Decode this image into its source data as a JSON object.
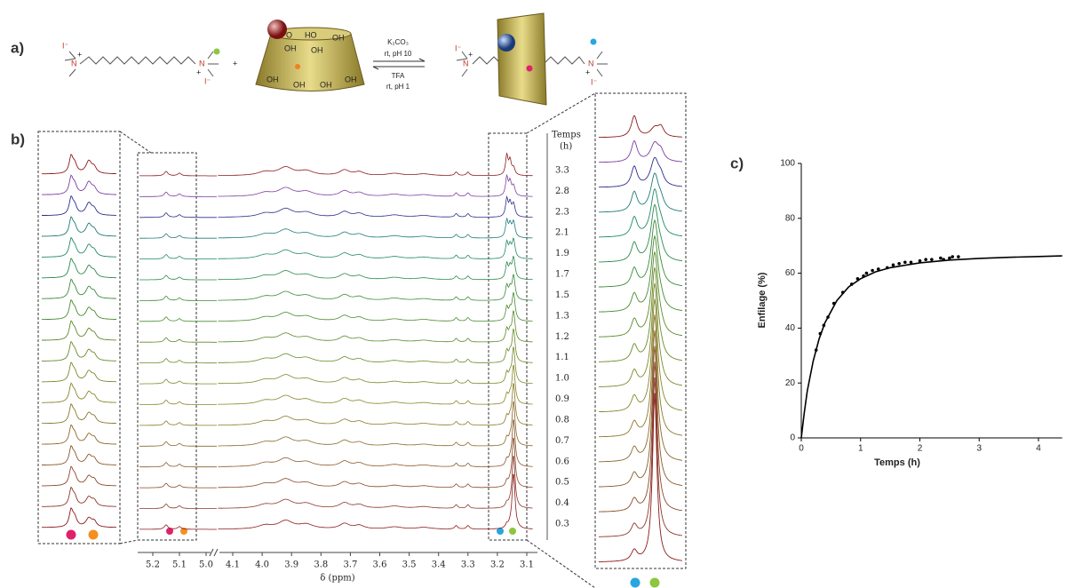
{
  "figure": {
    "panel_labels": [
      "a)",
      "b)",
      "c)"
    ],
    "reaction": {
      "atom_labels": [
        "I⁻",
        "N",
        "+",
        "N",
        "+",
        "I⁻",
        "+",
        "O",
        "HO",
        "OH",
        "OH",
        "OH",
        "OH",
        "OH",
        "OH",
        "OH",
        "I⁻",
        "N",
        "+",
        "N",
        "+",
        "I⁻"
      ],
      "conditions": [
        "K₂CO₃",
        "rt, pH 10",
        "TFA",
        "rt, pH 1"
      ]
    },
    "spectra": {
      "time_title": "Temps",
      "time_unit": "(h)",
      "times": [
        3.3,
        2.8,
        2.3,
        2.1,
        1.9,
        1.7,
        1.5,
        1.3,
        1.2,
        1.1,
        {
          "value": 1,
          "label": "1.0"
        },
        0.9,
        0.8,
        0.7,
        0.6,
        0.5,
        0.4,
        0.3
      ],
      "colors": [
        "#8b1a1a",
        "#7b3fa0",
        "#2c2c8c",
        "#1f7a7a",
        "#1f8a66",
        "#2a8a4a",
        "#3a8a3a",
        "#4a8a2e",
        "#5a8a2a",
        "#6a8a2a",
        "#7a8a2a",
        "#86862a",
        "#8a782a",
        "#8a682a",
        "#8a582a",
        "#8a482a",
        "#8a382a",
        "#8b1a1a"
      ],
      "xlabel": "δ (ppm)",
      "xticks": [
        5.2,
        5.1,
        {
          "value": 5,
          "label": "5.0"
        },
        4.1,
        {
          "value": 4,
          "label": "4.0"
        },
        3.9,
        3.8,
        3.7,
        3.6,
        3.5,
        3.4,
        3.3,
        3.2,
        3.1
      ]
    }
  },
  "chart_data": {
    "type": "scatter",
    "xlabel": "Temps (h)",
    "ylabel": "Enfilage (%)",
    "xlim": [
      0,
      4.4
    ],
    "xticks": [
      0,
      1,
      2,
      3,
      4
    ],
    "ylim": [
      0,
      100
    ],
    "yticks": [
      0,
      20,
      40,
      60,
      80,
      100
    ],
    "series": [
      {
        "type": "scatter",
        "color": "#000000",
        "x": [
          0.25,
          0.32,
          0.38,
          0.45,
          0.55,
          0.7,
          0.85,
          0.95,
          1.05,
          1.1,
          1.2,
          1.3,
          1.45,
          1.55,
          1.65,
          1.75,
          1.85,
          2.0,
          2.1,
          2.2,
          2.35,
          2.4,
          2.5,
          2.55,
          2.65
        ],
        "values": [
          32,
          38,
          41,
          44,
          49,
          53,
          56,
          58,
          59,
          60,
          61,
          61.5,
          62,
          63,
          63.5,
          64,
          64,
          64.5,
          65,
          65,
          65.5,
          65,
          65.5,
          66,
          66
        ]
      },
      {
        "type": "line",
        "color": "#000000",
        "x": [
          0,
          0.05,
          0.1,
          0.2,
          0.3,
          0.4,
          0.6,
          0.8,
          1,
          1.25,
          1.5,
          2,
          2.5,
          3,
          3.5,
          4,
          4.4
        ],
        "values": [
          0,
          9,
          17,
          28,
          36,
          42,
          50,
          55,
          58,
          60.5,
          62,
          63.8,
          64.8,
          65.4,
          65.8,
          66.1,
          66.3
        ]
      }
    ]
  }
}
